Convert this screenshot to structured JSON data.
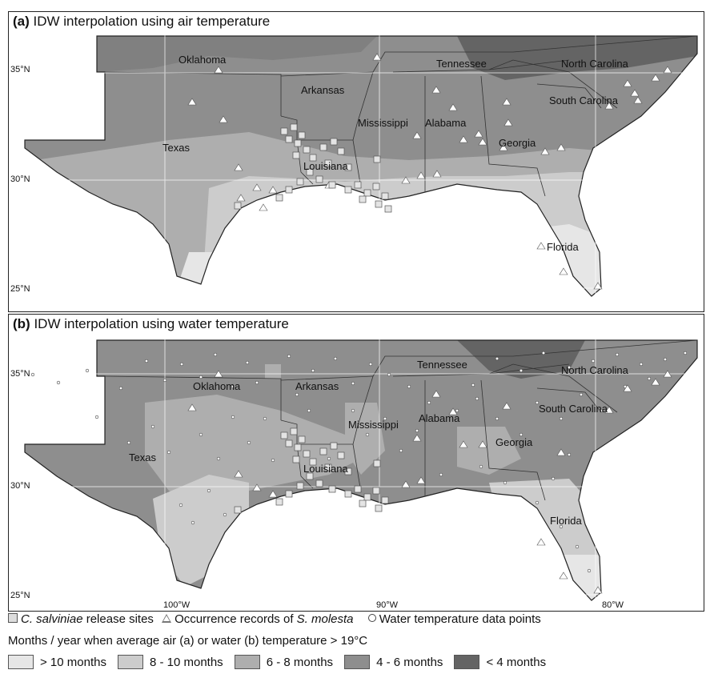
{
  "panels": [
    {
      "label": "(a)",
      "title": "IDW interpolation using air temperature"
    },
    {
      "label": "(b)",
      "title": "IDW interpolation using water temperature"
    }
  ],
  "latitudes": {
    "lat35": "35°N",
    "lat30": "30°N",
    "lat25": "25°N"
  },
  "longitudes": {
    "lon100": "100°W",
    "lon90": "90°W",
    "lon80": "80°W"
  },
  "states": {
    "oklahoma": "Oklahoma",
    "arkansas": "Arkansas",
    "tennessee": "Tennessee",
    "north_carolina": "North Carolina",
    "south_carolina": "South Carolina",
    "mississippi": "Mississippi",
    "alabama": "Alabama",
    "georgia": "Georgia",
    "texas": "Texas",
    "louisiana": "Louisiana",
    "florida": "Florida"
  },
  "legend": {
    "release_species": "C. salviniae",
    "release_text": " release sites",
    "occurrence_text": "Occurrence records of ",
    "occurrence_species": "S. molesta",
    "water_points": "Water temperature data points",
    "months_title": "Months / year when average air (a) or water (b) temperature > 19°C",
    "classes": [
      {
        "label": "> 10 months",
        "color": "#e6e6e6"
      },
      {
        "label": "8 - 10 months",
        "color": "#cccccc"
      },
      {
        "label": "6 - 8 months",
        "color": "#aeaeae"
      },
      {
        "label": "4 - 6 months",
        "color": "#8e8e8e"
      },
      {
        "label": "< 4 months",
        "color": "#646464"
      }
    ]
  }
}
